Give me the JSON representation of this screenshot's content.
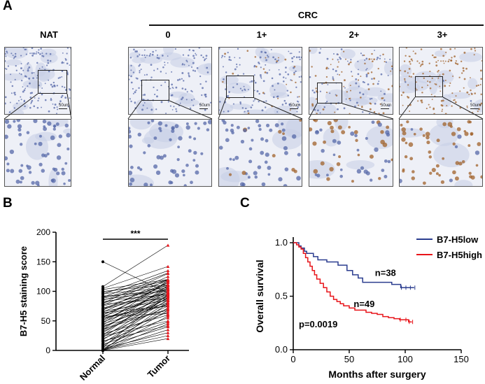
{
  "panel_a": {
    "label": "A",
    "group_label": "CRC",
    "nat_label": "NAT",
    "score_labels": [
      "0",
      "1+",
      "2+",
      "3+"
    ],
    "scale_bar": "50um",
    "tile_colors": {
      "tissue": "#c6cde6",
      "nucleus": "#5668a8",
      "brown": "#a0622a",
      "bg": "#eef0f7"
    },
    "stain_levels": [
      0,
      0,
      0.15,
      0.45,
      0.95
    ]
  },
  "panel_b": {
    "label": "B",
    "ylabel": "B7-H5 staining score",
    "significance": "***",
    "chart_data": {
      "type": "scatter",
      "categories": [
        "Normal",
        "Tumor"
      ],
      "ylim": [
        0,
        200
      ],
      "yticks": [
        0,
        50,
        100,
        150,
        200
      ],
      "ytick_labels": [
        "0",
        "50",
        "100",
        "150",
        "200"
      ],
      "pairs": [
        [
          150,
          97
        ],
        [
          108,
          178
        ],
        [
          105,
          142
        ],
        [
          103,
          120
        ],
        [
          100,
          111
        ],
        [
          98,
          118
        ],
        [
          96,
          106
        ],
        [
          95,
          135
        ],
        [
          92,
          100
        ],
        [
          90,
          131
        ],
        [
          88,
          120
        ],
        [
          86,
          102
        ],
        [
          85,
          117
        ],
        [
          83,
          95
        ],
        [
          80,
          110
        ],
        [
          78,
          88
        ],
        [
          76,
          125
        ],
        [
          75,
          104
        ],
        [
          72,
          98
        ],
        [
          70,
          96
        ],
        [
          68,
          120
        ],
        [
          66,
          85
        ],
        [
          65,
          112
        ],
        [
          62,
          94
        ],
        [
          60,
          108
        ],
        [
          58,
          92
        ],
        [
          56,
          115
        ],
        [
          55,
          80
        ],
        [
          52,
          99
        ],
        [
          50,
          103
        ],
        [
          48,
          91
        ],
        [
          46,
          118
        ],
        [
          45,
          78
        ],
        [
          43,
          106
        ],
        [
          40,
          88
        ],
        [
          38,
          97
        ],
        [
          36,
          70
        ],
        [
          35,
          110
        ],
        [
          32,
          84
        ],
        [
          30,
          93
        ],
        [
          28,
          60
        ],
        [
          26,
          102
        ],
        [
          25,
          75
        ],
        [
          22,
          90
        ],
        [
          20,
          65
        ],
        [
          18,
          86
        ],
        [
          15,
          55
        ],
        [
          12,
          82
        ],
        [
          10,
          48
        ],
        [
          8,
          72
        ],
        [
          6,
          40
        ],
        [
          5,
          95
        ],
        [
          3,
          30
        ],
        [
          2,
          68
        ],
        [
          1,
          25
        ],
        [
          0,
          58
        ],
        [
          0,
          45
        ],
        [
          0,
          20
        ],
        [
          0,
          80
        ],
        [
          0,
          35
        ],
        [
          64,
          75
        ],
        [
          58,
          62
        ],
        [
          70,
          115
        ],
        [
          42,
          68
        ],
        [
          34,
          88
        ],
        [
          24,
          50
        ],
        [
          16,
          42
        ],
        [
          80,
          130
        ],
        [
          90,
          104
        ],
        [
          55,
          76
        ]
      ],
      "normal_color": "#000000",
      "tumor_color": "#e8141a"
    }
  },
  "panel_c": {
    "label": "C",
    "ylabel": "Overall survival",
    "xlabel": "Months after surgery",
    "pvalue": "p=0.0019",
    "n_low": "n=38",
    "n_high": "n=49",
    "chart_data": {
      "type": "line",
      "xlim": [
        0,
        150
      ],
      "ylim": [
        0,
        1.0
      ],
      "xticks": [
        0,
        50,
        100,
        150
      ],
      "xtick_labels": [
        "0",
        "50",
        "100",
        "150"
      ],
      "yticks": [
        0,
        0.5,
        1.0
      ],
      "ytick_labels": [
        "0.0",
        "0.5",
        "1.0"
      ],
      "series": [
        {
          "name": "B7-H5low",
          "color": "#2b3d8f",
          "x": [
            0,
            5,
            7,
            10,
            12,
            18,
            22,
            30,
            40,
            48,
            53,
            58,
            62,
            78,
            88,
            96,
            100,
            104,
            108
          ],
          "y": [
            1.0,
            0.97,
            0.95,
            0.92,
            0.9,
            0.87,
            0.84,
            0.82,
            0.79,
            0.74,
            0.7,
            0.67,
            0.63,
            0.63,
            0.61,
            0.58,
            0.58,
            0.58,
            0.58
          ]
        },
        {
          "name": "B7-H5high",
          "color": "#e8141a",
          "x": [
            0,
            3,
            5,
            7,
            9,
            11,
            13,
            15,
            17,
            19,
            21,
            24,
            27,
            30,
            33,
            36,
            39,
            42,
            45,
            50,
            55,
            60,
            65,
            70,
            75,
            80,
            85,
            90,
            95,
            100,
            103,
            106
          ],
          "y": [
            1.0,
            0.98,
            0.96,
            0.94,
            0.9,
            0.86,
            0.82,
            0.78,
            0.74,
            0.7,
            0.66,
            0.62,
            0.58,
            0.54,
            0.5,
            0.47,
            0.45,
            0.43,
            0.41,
            0.39,
            0.37,
            0.37,
            0.35,
            0.34,
            0.33,
            0.31,
            0.3,
            0.29,
            0.28,
            0.28,
            0.26,
            0.26
          ]
        }
      ]
    }
  }
}
